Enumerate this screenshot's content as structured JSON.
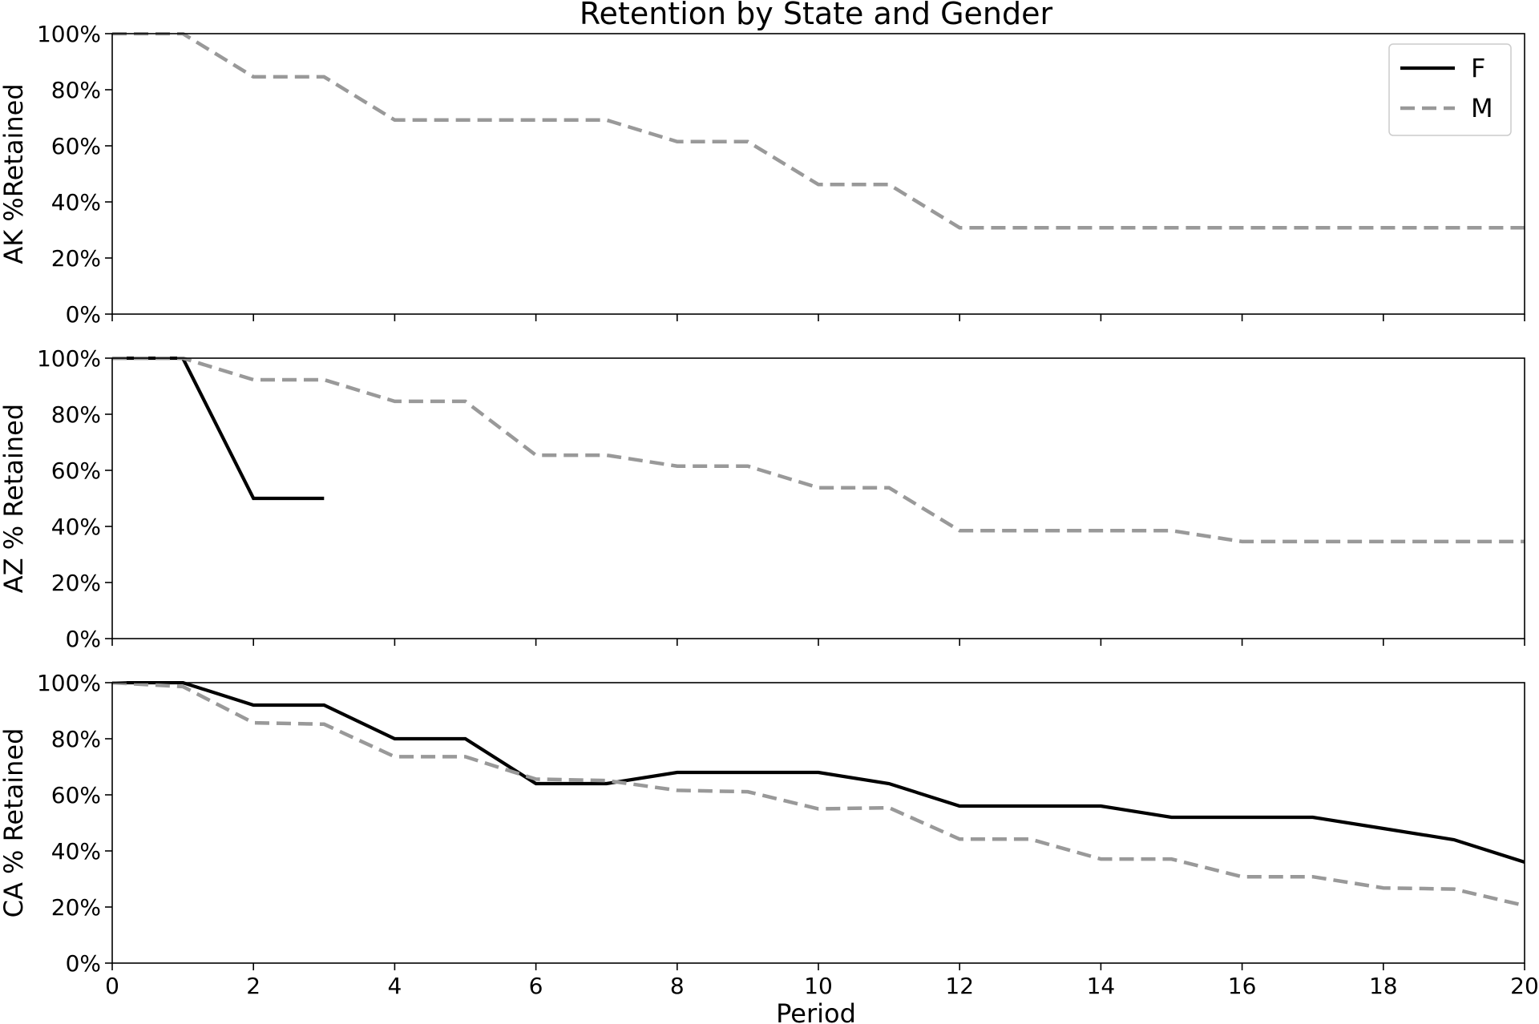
{
  "chart_data": {
    "type": "line",
    "title": "Retention by State and Gender",
    "xlabel": "Period",
    "xlim": [
      0,
      20
    ],
    "x_ticks": [
      0,
      2,
      4,
      6,
      8,
      10,
      12,
      14,
      16,
      18,
      20
    ],
    "ylim": [
      0,
      100
    ],
    "y_ticks": [
      0,
      20,
      40,
      60,
      80,
      100
    ],
    "y_tick_labels": [
      "0%",
      "20%",
      "40%",
      "60%",
      "80%",
      "100%"
    ],
    "legend": {
      "placement": "top-right",
      "entries": [
        {
          "name": "F",
          "color": "#000000",
          "dashed": false
        },
        {
          "name": "M",
          "color": "#999999",
          "dashed": true
        }
      ]
    },
    "panels": [
      {
        "ylabel": "AK %Retained",
        "series": [
          {
            "name": "M",
            "x": [
              0,
              1,
              2,
              3,
              4,
              5,
              6,
              7,
              8,
              9,
              10,
              11,
              12,
              13,
              14,
              15,
              16,
              17,
              18,
              19,
              20
            ],
            "values": [
              100,
              100,
              84.6,
              84.6,
              69.2,
              69.2,
              69.2,
              69.2,
              61.5,
              61.5,
              46.2,
              46.2,
              30.8,
              30.8,
              30.8,
              30.8,
              30.8,
              30.8,
              30.8,
              30.8,
              30.8
            ]
          }
        ]
      },
      {
        "ylabel": "AZ % Retained",
        "series": [
          {
            "name": "F",
            "x": [
              0,
              1,
              2,
              3
            ],
            "values": [
              100,
              100,
              50,
              50
            ]
          },
          {
            "name": "M",
            "x": [
              0,
              1,
              2,
              3,
              4,
              5,
              6,
              7,
              8,
              9,
              10,
              11,
              12,
              13,
              14,
              15,
              16,
              17,
              18,
              19,
              20
            ],
            "values": [
              100,
              100,
              92.3,
              92.3,
              84.6,
              84.6,
              65.4,
              65.4,
              61.5,
              61.5,
              53.8,
              53.8,
              38.5,
              38.5,
              38.5,
              38.5,
              34.6,
              34.6,
              34.6,
              34.6,
              34.6
            ]
          }
        ]
      },
      {
        "ylabel": "CA % Retained",
        "series": [
          {
            "name": "F",
            "x": [
              0,
              1,
              2,
              3,
              4,
              5,
              6,
              7,
              8,
              9,
              10,
              11,
              12,
              13,
              14,
              15,
              16,
              17,
              18,
              19,
              20
            ],
            "values": [
              100,
              100,
              92,
              92,
              80,
              80,
              64,
              64,
              68,
              68,
              68,
              64,
              56,
              56,
              56,
              52,
              52,
              52,
              48,
              44,
              36
            ]
          },
          {
            "name": "M",
            "x": [
              0,
              1,
              2,
              3,
              4,
              5,
              6,
              7,
              8,
              9,
              10,
              11,
              12,
              13,
              14,
              15,
              16,
              17,
              18,
              19,
              20
            ],
            "values": [
              100,
              98.6,
              85.7,
              85.2,
              73.6,
              73.6,
              65.6,
              65.1,
              61.6,
              61.1,
              55,
              55.4,
              44.2,
              44.2,
              37.1,
              37.1,
              30.8,
              30.8,
              26.8,
              26.4,
              20.5
            ]
          }
        ]
      }
    ]
  }
}
